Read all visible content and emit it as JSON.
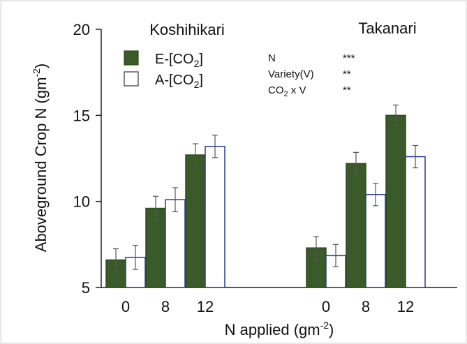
{
  "chart_data": {
    "type": "bar",
    "xlabel": "N applied (gm",
    "xlabel_sup": "-2",
    "xlabel_end": ")",
    "ylabel": "Aboveground Crop N  (gm",
    "ylabel_sup": "-2",
    "ylabel_end": ")",
    "ylim": [
      5,
      20
    ],
    "yticks": [
      "5",
      "10",
      "15",
      "20"
    ],
    "groups": [
      {
        "name": "Koshihikari",
        "categories": [
          "0",
          "8",
          "12"
        ],
        "series": [
          {
            "values": [
              6.6,
              9.6,
              12.7
            ],
            "errors": [
              0.65,
              0.7,
              0.65
            ]
          },
          {
            "values": [
              6.75,
              10.1,
              13.2
            ],
            "errors": [
              0.7,
              0.7,
              0.65
            ]
          }
        ]
      },
      {
        "name": "Takanari",
        "categories": [
          "0",
          "8",
          "12"
        ],
        "series": [
          {
            "values": [
              7.3,
              12.2,
              15.0
            ],
            "errors": [
              0.65,
              0.65,
              0.6
            ]
          },
          {
            "values": [
              6.85,
              10.4,
              12.6
            ],
            "errors": [
              0.65,
              0.65,
              0.65
            ]
          }
        ]
      }
    ],
    "legend": [
      {
        "pre": "E-[CO",
        "sub": "2",
        "post": "]",
        "color": "#3a5a2a"
      },
      {
        "pre": "A-[CO",
        "sub": "2",
        "post": "]",
        "color": "#ffffff"
      }
    ],
    "stats": [
      {
        "label": "N",
        "label_sub": "",
        "label_post": "",
        "sig": "***"
      },
      {
        "label": "Variety(V)",
        "label_sub": "",
        "label_post": "",
        "sig": "**"
      },
      {
        "label": "CO",
        "label_sub": "2",
        "label_post": " x V",
        "sig": "**"
      }
    ],
    "colors": {
      "elevated": "#3a5a2a",
      "ambient_fill": "#ffffff",
      "ambient_edge": "#2a3a8a",
      "error": "#555555"
    }
  }
}
